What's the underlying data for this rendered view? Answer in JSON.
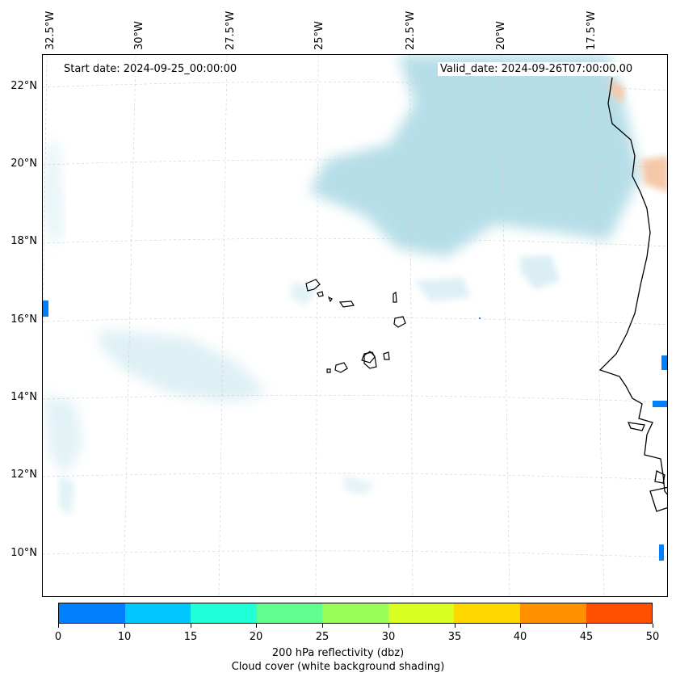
{
  "header": {
    "start_date": "Start date: 2024-09-25_00:00:00",
    "valid_date": "Valid_date: 2024-09-26T07:00:00.00"
  },
  "map": {
    "lon_labels": [
      "32.5°W",
      "30°W",
      "27.5°W",
      "25°W",
      "22.5°W",
      "20°W",
      "17.5°W"
    ],
    "lat_labels": [
      "22°N",
      "20°N",
      "18°N",
      "16°N",
      "14°N",
      "12°N",
      "10°N"
    ],
    "colors": {
      "cloud": "#a9d8e4",
      "coast": "#000000",
      "grid": "#cccccc",
      "warm_patch": "#f5c8a8",
      "reflectivity_low": "#0080ff"
    }
  },
  "colorbar": {
    "ticks": [
      "0",
      "10",
      "15",
      "20",
      "25",
      "30",
      "35",
      "40",
      "45",
      "50"
    ],
    "colors": [
      "#0080ff",
      "#00c8ff",
      "#20ffd8",
      "#60ff90",
      "#98ff58",
      "#d8ff20",
      "#ffd800",
      "#ff9000",
      "#ff5000"
    ],
    "label_line1": "200 hPa reflectivity (dbz)",
    "label_line2": "Cloud cover (white background shading)"
  }
}
